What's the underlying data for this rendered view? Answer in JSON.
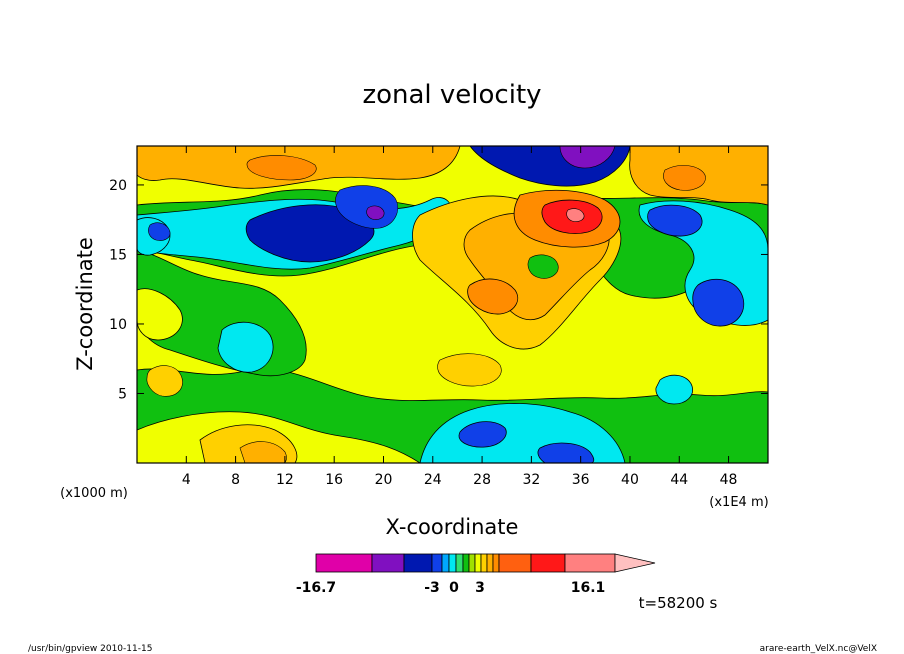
{
  "chart_data": {
    "type": "heatmap",
    "title": "zonal velocity",
    "xlabel": "X-coordinate",
    "ylabel": "Z-coordinate",
    "x_unit_label": "(x1E4 m)",
    "y_unit_label": "(x1000 m)",
    "xlim": [
      0,
      51.2
    ],
    "ylim": [
      0,
      22.8
    ],
    "x_ticks": [
      "4",
      "8",
      "12",
      "16",
      "20",
      "24",
      "28",
      "32",
      "36",
      "40",
      "44",
      "48"
    ],
    "y_ticks": [
      "5",
      "10",
      "15",
      "20"
    ],
    "x_tick_values": [
      4,
      8,
      12,
      16,
      20,
      24,
      28,
      32,
      36,
      40,
      44,
      48
    ],
    "y_tick_values": [
      5,
      10,
      15,
      20
    ],
    "colorbar": {
      "colors": [
        "#e000a8",
        "#8010c0",
        "#0018b0",
        "#1040e8",
        "#00a8ff",
        "#00e8f0",
        "#30e070",
        "#10c010",
        "#a0e000",
        "#f0ff00",
        "#ffd000",
        "#ffb000",
        "#ff8c00",
        "#ff6010",
        "#ff1818",
        "#ff8080",
        "#ffc0c0"
      ],
      "labels": [
        "-16.7",
        "-3",
        "0",
        "3",
        "16.1"
      ],
      "label_values": [
        -16.7,
        -3,
        0,
        3,
        16.1
      ]
    },
    "time_label": "t=58200 s",
    "regions": [
      {
        "name": "lower-right-negative",
        "x": 34,
        "z": 2,
        "value": -5
      },
      {
        "name": "upper-left-jet",
        "x": 16,
        "z": 17,
        "value": -10
      },
      {
        "name": "upper-mid-jet",
        "x": 36,
        "z": 22,
        "value": -13
      },
      {
        "name": "mid-positive",
        "x": 36,
        "z": 17,
        "value": 12
      },
      {
        "name": "right-negative",
        "x": 46,
        "z": 12,
        "value": -8
      }
    ]
  },
  "footer": {
    "left": "/usr/bin/gpview   2010-11-15",
    "right": "arare-earth_VelX.nc@VelX"
  }
}
